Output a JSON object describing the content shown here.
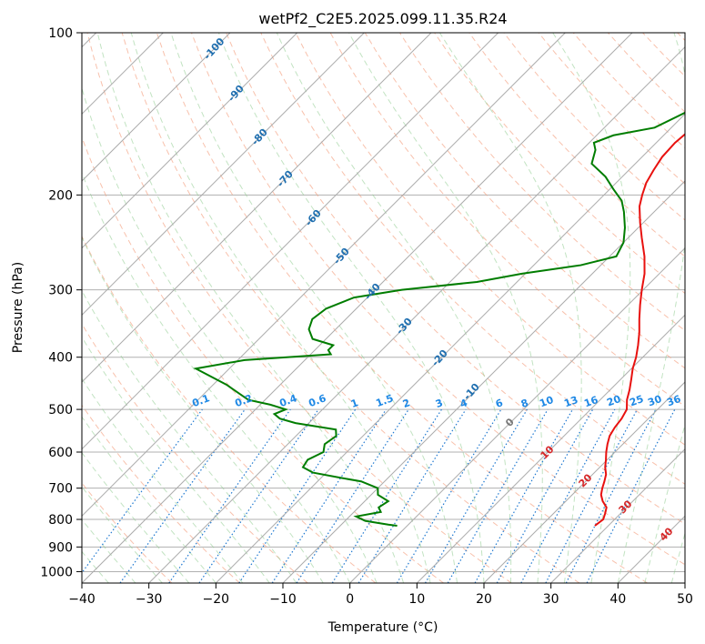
{
  "chart_data": {
    "type": "line",
    "title": "wetPf2_C2E5.2025.099.11.35.R24",
    "xlabel": "Temperature (°C)",
    "ylabel": "Pressure (hPa)",
    "xlim": [
      -40,
      50
    ],
    "ylim": [
      1050,
      100
    ],
    "y_scale": "log",
    "grid": true,
    "x_ticks": [
      -40,
      -30,
      -20,
      -10,
      0,
      10,
      20,
      30,
      40,
      50
    ],
    "y_ticks": [
      100,
      200,
      300,
      400,
      500,
      600,
      700,
      800,
      900,
      1000
    ],
    "temperature": {
      "color": "#e8110f",
      "p": [
        822,
        800,
        780,
        760,
        740,
        720,
        700,
        680,
        660,
        640,
        620,
        600,
        580,
        560,
        540,
        520,
        500,
        480,
        460,
        440,
        420,
        400,
        380,
        360,
        340,
        320,
        300,
        280,
        260,
        240,
        225,
        210,
        200,
        190,
        180,
        170,
        160,
        150,
        140,
        130,
        120,
        110,
        100
      ],
      "t": [
        28.0,
        28.3,
        27.7,
        27.0,
        25.5,
        24.3,
        23.5,
        22.8,
        22.0,
        20.8,
        19.8,
        18.7,
        17.7,
        16.8,
        16.3,
        16.0,
        15.4,
        14.0,
        12.9,
        11.6,
        10.2,
        9.0,
        7.5,
        5.8,
        3.8,
        1.8,
        -0.2,
        -2.2,
        -4.8,
        -8.0,
        -10.5,
        -13.0,
        -14.3,
        -15.5,
        -16.3,
        -17.0,
        -17.2,
        -16.8,
        -18.0,
        -20.5,
        -23.0,
        -23.2,
        -25.0
      ]
    },
    "dewpoint": {
      "color": "#007d00",
      "p": [
        822,
        818,
        805,
        790,
        775,
        760,
        740,
        720,
        700,
        680,
        670,
        655,
        640,
        620,
        600,
        580,
        560,
        545,
        530,
        520,
        510,
        500,
        490,
        480,
        450,
        420,
        405,
        395,
        388,
        380,
        370,
        355,
        340,
        325,
        310,
        300,
        290,
        280,
        270,
        260,
        245,
        230,
        215,
        205,
        195,
        185,
        175,
        165,
        160,
        155,
        150,
        140,
        130,
        120,
        110,
        100
      ],
      "t": [
        -1.5,
        -3.0,
        -7.0,
        -9.0,
        -6.0,
        -7.0,
        -6.5,
        -9.0,
        -10.0,
        -13.5,
        -17.0,
        -22.0,
        -24.3,
        -24.7,
        -23.5,
        -24.5,
        -24.0,
        -25.0,
        -32.0,
        -35.0,
        -36.5,
        -35.5,
        -38.5,
        -42.5,
        -48.0,
        -55.0,
        -49.0,
        -37.0,
        -38.0,
        -38.0,
        -42.0,
        -44.0,
        -45.0,
        -44.5,
        -42.0,
        -36.0,
        -26.0,
        -20.5,
        -13.0,
        -9.0,
        -10.0,
        -12.0,
        -14.5,
        -16.5,
        -19.5,
        -22.5,
        -26.5,
        -28.0,
        -29.3,
        -27.5,
        -22.5,
        -20.0,
        -17.5,
        -16.7,
        -15.5,
        -8.0
      ]
    },
    "isotherms": [
      -130,
      -120,
      -110,
      -100,
      -90,
      -80,
      -70,
      -60,
      -50,
      -40,
      -30,
      -20,
      -10,
      0,
      10,
      20,
      30,
      40,
      50
    ],
    "dry_adiabat_labels": [
      "0",
      "10",
      "20",
      "30",
      "40"
    ],
    "moist_adiabat_labels": [
      "-100",
      "-90",
      "-80",
      "-70",
      "-60",
      "-50",
      "-40",
      "-30",
      "-20",
      "-10"
    ],
    "mixing_ratio_labels": [
      "0.1",
      "0.2",
      "0.4",
      "0.6",
      "1",
      "1.5",
      "2",
      "3",
      "4",
      "6",
      "8",
      "10",
      "13",
      "16",
      "20",
      "25",
      "30",
      "36"
    ],
    "mixing_ratio_values": [
      0.1,
      0.2,
      0.4,
      0.6,
      1,
      1.5,
      2,
      3,
      4,
      6,
      8,
      10,
      13,
      16,
      20,
      25,
      30,
      36
    ]
  }
}
